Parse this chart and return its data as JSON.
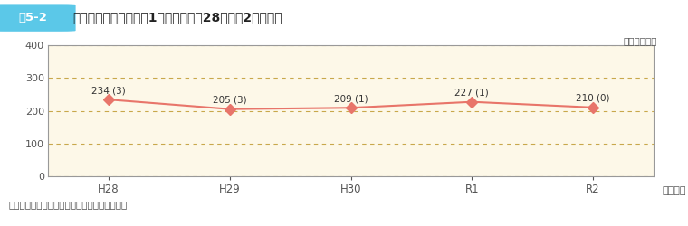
{
  "title": "死傷者数の推移〔休業1日以上（平成28～令和2年度）〕",
  "fig_label": "図5-2",
  "unit_label": "（単位：人）",
  "note": "（注）　（　）内は、死亡者数で内数である。",
  "x_labels": [
    "H28",
    "H29",
    "H30",
    "R1",
    "R2"
  ],
  "x_suffix": "（年度）",
  "y_values": [
    234,
    205,
    209,
    227,
    210
  ],
  "y_sublabels": [
    "(3)",
    "(3)",
    "(1)",
    "(1)",
    "(0)"
  ],
  "ylim": [
    0,
    400
  ],
  "yticks": [
    0,
    100,
    200,
    300,
    400
  ],
  "grid_color": "#c8a84b",
  "grid_style": "--",
  "line_color": "#e8756a",
  "marker_color": "#e8756a",
  "plot_bg_color": "#fdf8e8",
  "title_color": "#222222",
  "label_color": "#444444",
  "tick_color": "#555555",
  "annotation_color": "#333333",
  "fig_label_bg": "#5bc8e8",
  "border_color": "#999999",
  "border_top_color": "#bbbbbb"
}
